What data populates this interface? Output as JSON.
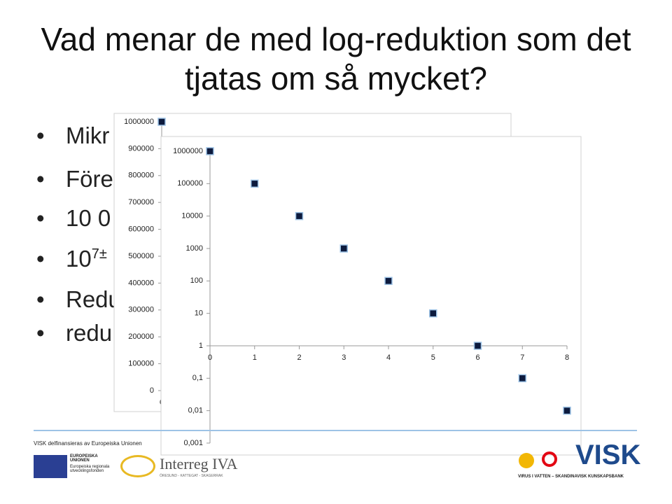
{
  "header": {
    "title": "Vad menar de med log-reduktion som det tjatas om så mycket?"
  },
  "bullets": [
    "Mikr",
    "Före",
    "10 0",
    {
      "text": "10",
      "sup": "7±"
    },
    "Redu",
    "redu"
  ],
  "chart_data": [
    {
      "type": "scatter",
      "color": "#0d1b3e",
      "x": [
        0
      ],
      "values": [
        1000000
      ],
      "xlim": [
        0,
        8
      ],
      "xticks": [
        0
      ],
      "ylim": [
        0,
        1000000
      ],
      "yticks": [
        0,
        100000,
        200000,
        300000,
        400000,
        500000,
        600000,
        700000,
        800000,
        900000,
        1000000
      ],
      "log_scale": false
    },
    {
      "type": "scatter",
      "color": "#0d1b3e",
      "x": [
        0,
        1,
        2,
        3,
        4,
        5,
        6,
        7,
        8
      ],
      "values": [
        1000000,
        100000,
        10000,
        1000,
        100,
        10,
        1,
        0.1,
        0.01
      ],
      "xlim": [
        0,
        8
      ],
      "xticks": [
        0,
        1,
        2,
        3,
        4,
        5,
        6,
        7,
        8
      ],
      "ylim": [
        0.001,
        1000000
      ],
      "yticks": [
        {
          "value": 0.001,
          "label": "0,001"
        },
        {
          "value": 0.01,
          "label": "0,01"
        },
        {
          "value": 0.1,
          "label": "0,1"
        },
        1,
        10,
        100,
        1000,
        10000,
        100000,
        1000000
      ],
      "log_scale": true,
      "x_axis_crossing": 1
    }
  ],
  "footer": {
    "funding": "VISK delfinansieras av Europeiska Unionen",
    "eu": "EUROPEISKA UNIONEN",
    "eu_fund": "Europeiska regionala utvecklingsfonden",
    "interreg": "Interreg IVA",
    "interreg_sub": "ÖRESUND - KATTEGAT - SKAGERRAK",
    "visk": "VISK",
    "visk_sub": "VIRUS I VATTEN – SKANDINAVISK KUNSKAPSBANK"
  }
}
